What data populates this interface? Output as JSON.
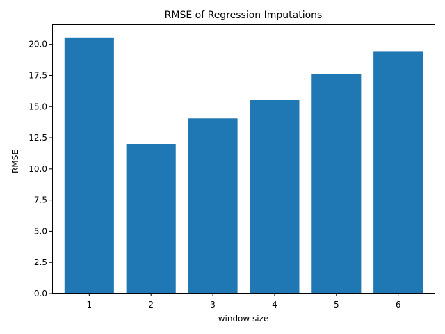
{
  "chart_data": {
    "type": "bar",
    "title": "RMSE of Regression Imputations",
    "xlabel": "window size",
    "ylabel": "RMSE",
    "categories": [
      "1",
      "2",
      "3",
      "4",
      "5",
      "6"
    ],
    "values": [
      20.55,
      12.0,
      14.05,
      15.55,
      17.6,
      19.4
    ],
    "ylim": [
      0,
      21.6
    ],
    "yticks": [
      "0.0",
      "2.5",
      "5.0",
      "7.5",
      "10.0",
      "12.5",
      "15.0",
      "17.5",
      "20.0"
    ],
    "bar_color": "#1f77b4",
    "grid": false
  }
}
